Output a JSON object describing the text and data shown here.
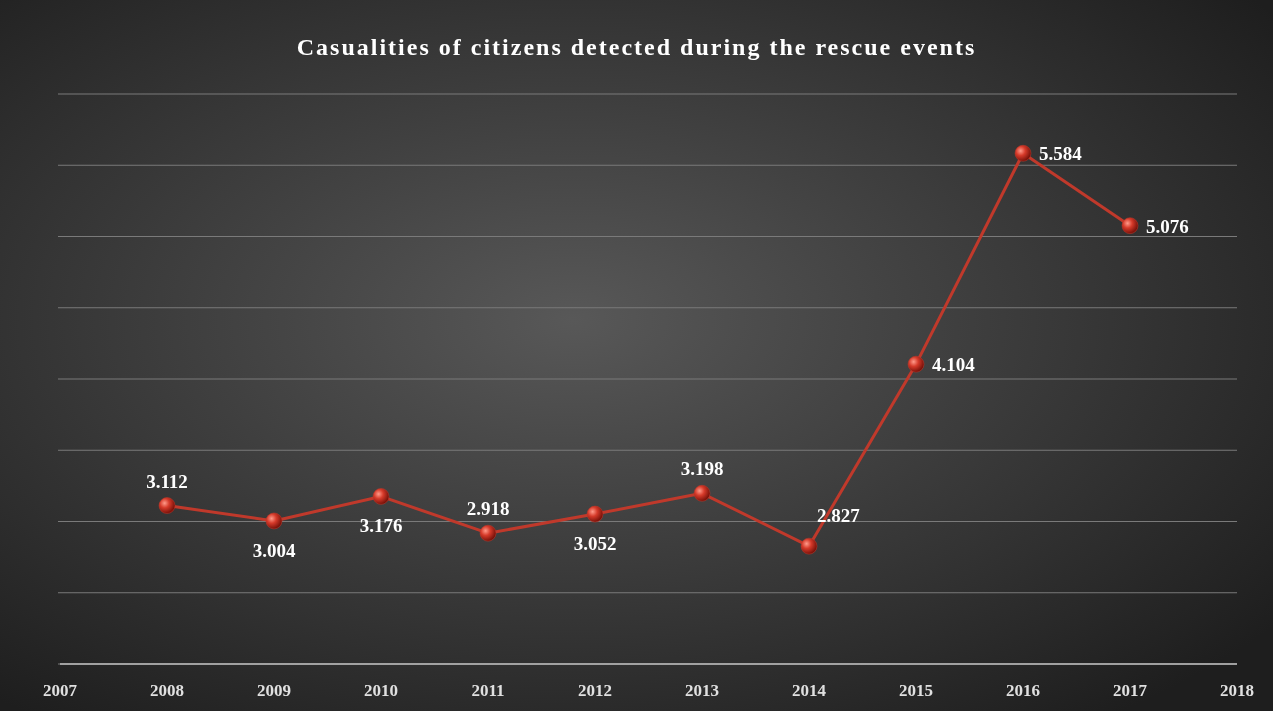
{
  "chart_data": {
    "type": "line",
    "title": "Casualities of citizens detected during the rescue events",
    "x": [
      2008,
      2009,
      2010,
      2011,
      2012,
      2013,
      2014,
      2015,
      2016,
      2017
    ],
    "series": [
      {
        "color": "#c0392b",
        "values": [
          3.112,
          3.004,
          3.176,
          2.918,
          3.052,
          3.198,
          2.827,
          4.104,
          5.584,
          5.076
        ]
      }
    ],
    "xlim": [
      2007,
      2018
    ],
    "xticks": [
      2007,
      2008,
      2009,
      2010,
      2011,
      2012,
      2013,
      2014,
      2015,
      2016,
      2017,
      2018
    ],
    "ylim": [
      2,
      6
    ],
    "yticks": [
      {
        "value": 2,
        "label": null
      },
      {
        "value": 2.5,
        "label": null
      },
      {
        "value": 3,
        "label": null
      },
      {
        "value": 3.5,
        "label": null
      },
      {
        "value": 4,
        "label": null
      },
      {
        "value": 4.5,
        "label": null
      },
      {
        "value": 5,
        "label": null
      },
      {
        "value": 5.5,
        "label": null
      },
      {
        "value": 6,
        "label": null
      }
    ],
    "grid": "y",
    "tick_labels": "x",
    "marker": "circle",
    "line_style": "solid",
    "data_labels": true
  }
}
